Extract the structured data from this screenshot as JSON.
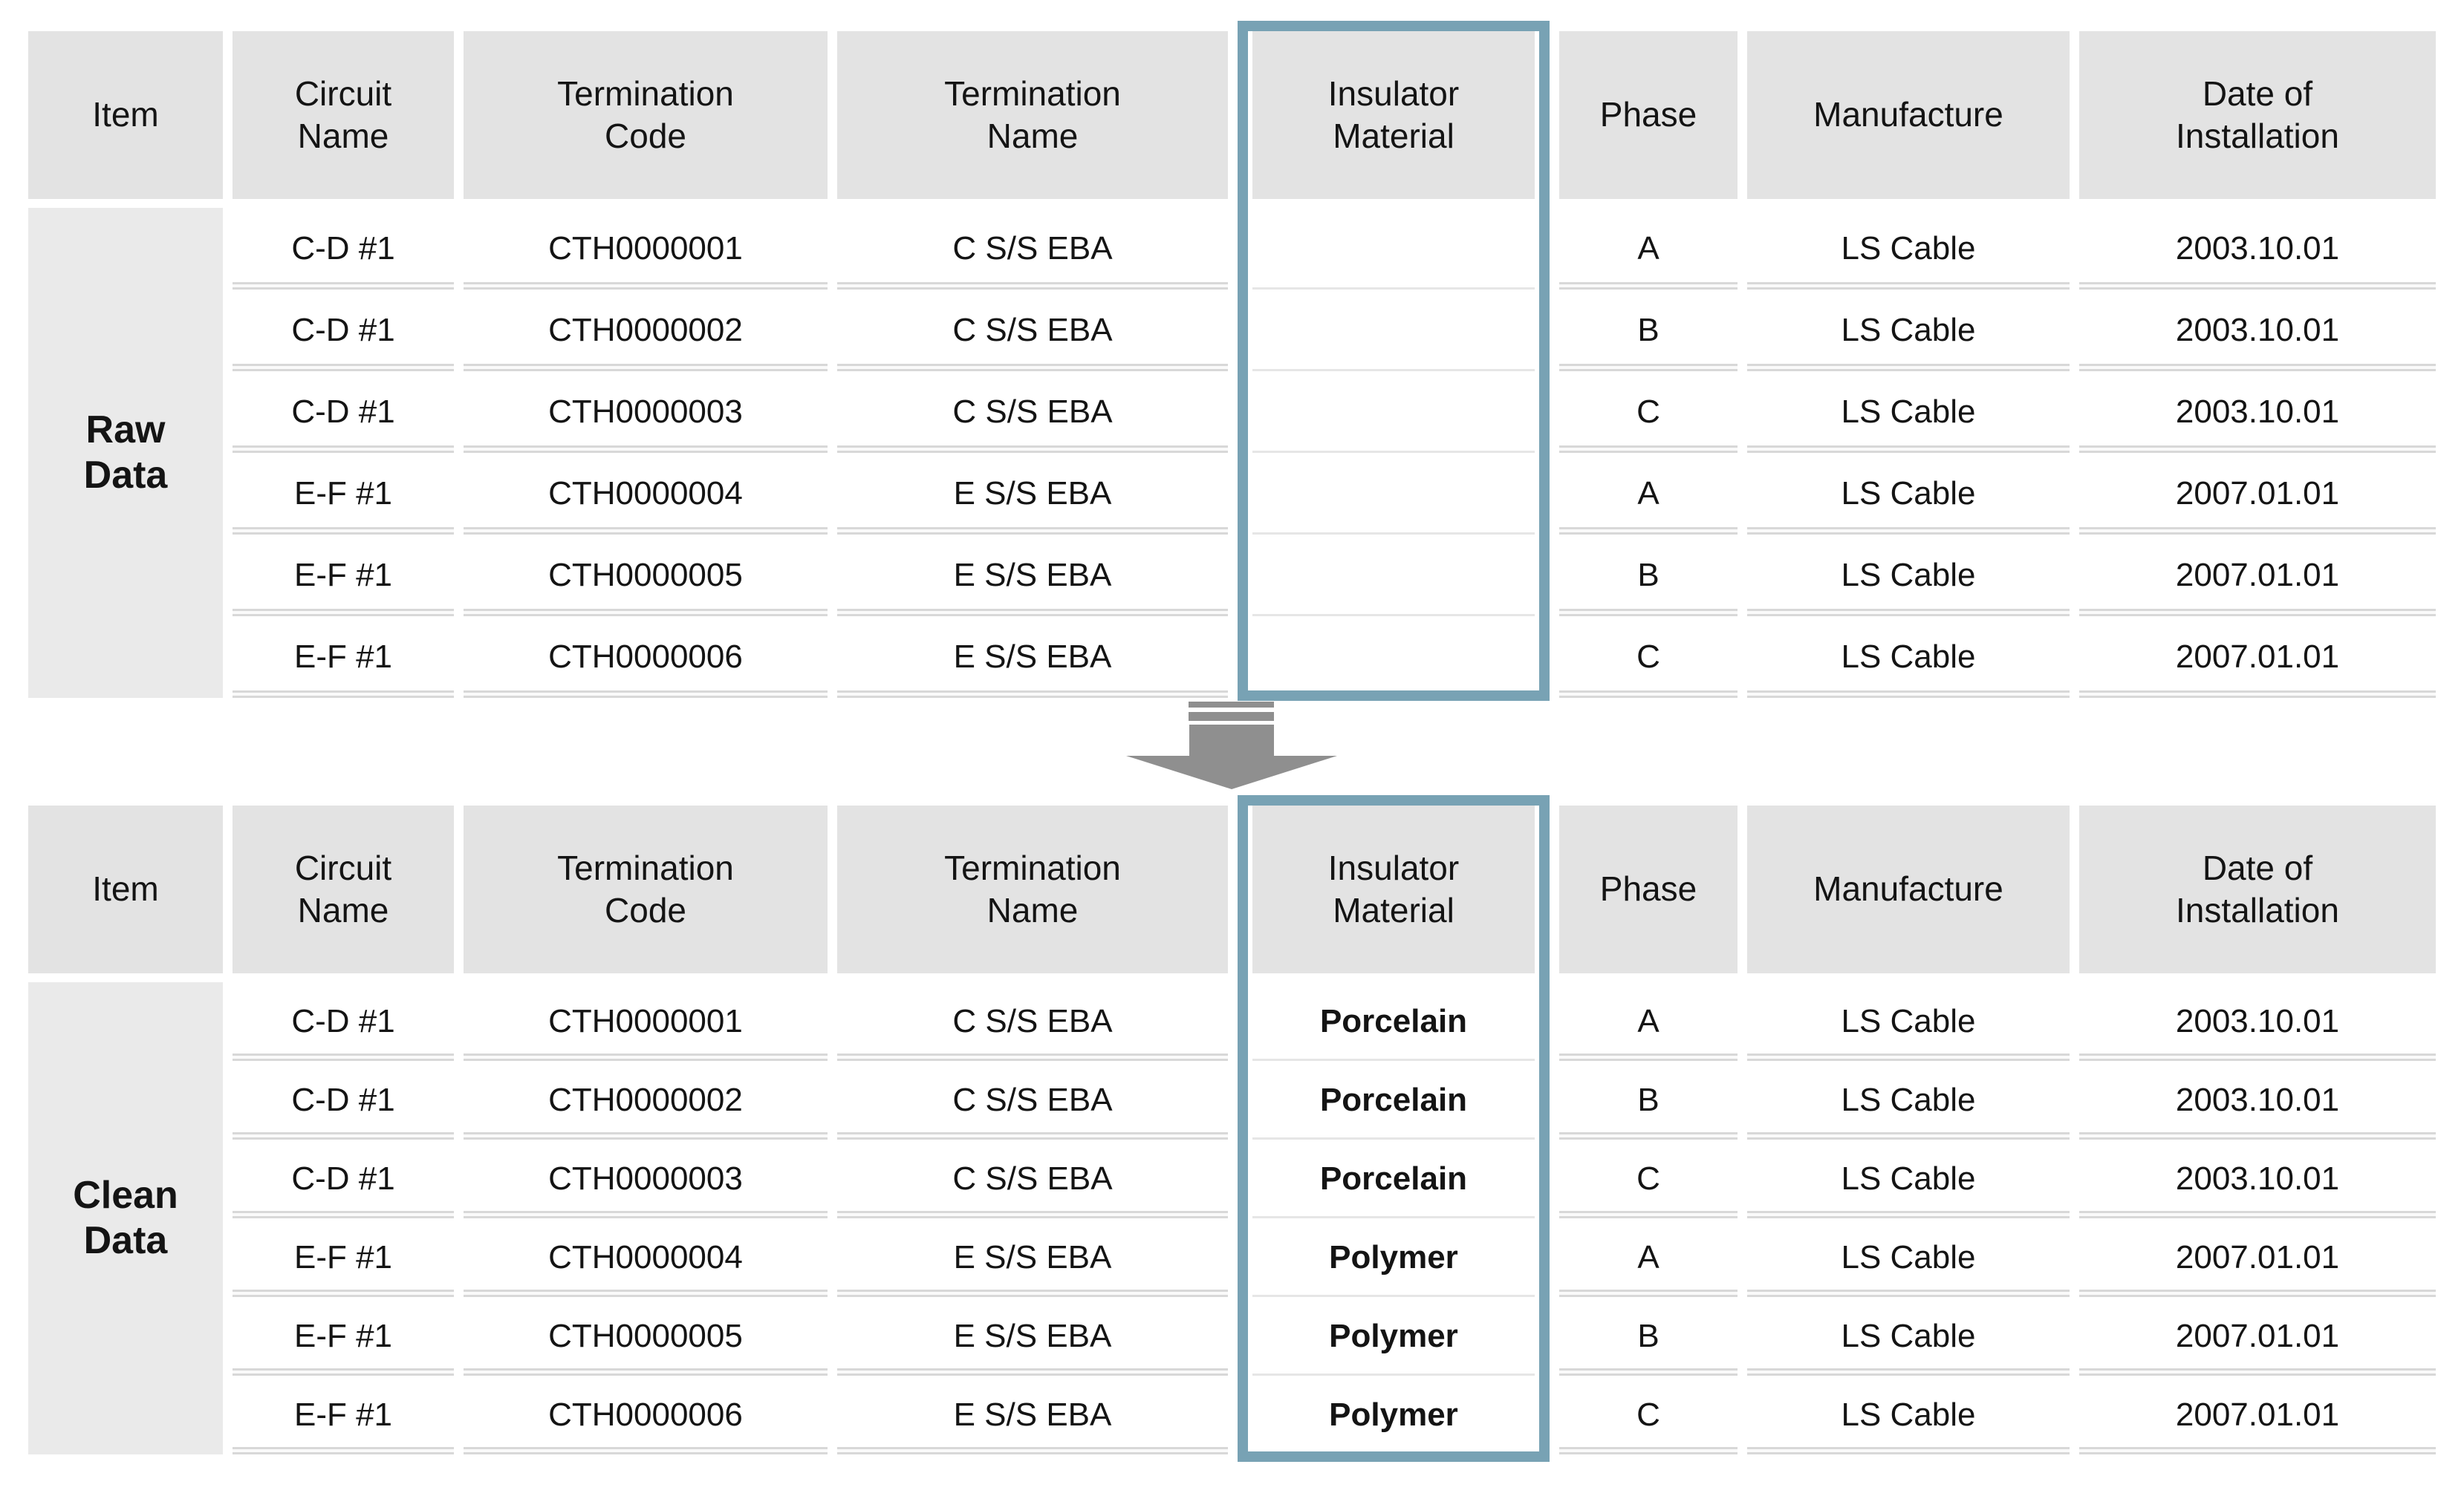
{
  "figure": {
    "headers": [
      "Item",
      "Circuit\nName",
      "Termination\nCode",
      "Termination\nName",
      "Insulator\nMaterial",
      "Phase",
      "Manufacture",
      "Date of\nInstallation"
    ],
    "raw": {
      "item_label": "Raw\nData",
      "rows": [
        {
          "circuit": "C-D #1",
          "code": "CTH0000001",
          "name": "C S/S EBA",
          "insulator": "",
          "phase": "A",
          "manufacture": "LS Cable",
          "date": "2003.10.01"
        },
        {
          "circuit": "C-D #1",
          "code": "CTH0000002",
          "name": "C S/S EBA",
          "insulator": "",
          "phase": "B",
          "manufacture": "LS Cable",
          "date": "2003.10.01"
        },
        {
          "circuit": "C-D #1",
          "code": "CTH0000003",
          "name": "C S/S EBA",
          "insulator": "",
          "phase": "C",
          "manufacture": "LS Cable",
          "date": "2003.10.01"
        },
        {
          "circuit": "E-F #1",
          "code": "CTH0000004",
          "name": "E S/S EBA",
          "insulator": "",
          "phase": "A",
          "manufacture": "LS Cable",
          "date": "2007.01.01"
        },
        {
          "circuit": "E-F #1",
          "code": "CTH0000005",
          "name": "E S/S EBA",
          "insulator": "",
          "phase": "B",
          "manufacture": "LS Cable",
          "date": "2007.01.01"
        },
        {
          "circuit": "E-F #1",
          "code": "CTH0000006",
          "name": "E S/S EBA",
          "insulator": "",
          "phase": "C",
          "manufacture": "LS Cable",
          "date": "2007.01.01"
        }
      ]
    },
    "clean": {
      "item_label": "Clean\nData",
      "rows": [
        {
          "circuit": "C-D #1",
          "code": "CTH0000001",
          "name": "C S/S EBA",
          "insulator": "Porcelain",
          "phase": "A",
          "manufacture": "LS Cable",
          "date": "2003.10.01"
        },
        {
          "circuit": "C-D #1",
          "code": "CTH0000002",
          "name": "C S/S EBA",
          "insulator": "Porcelain",
          "phase": "B",
          "manufacture": "LS Cable",
          "date": "2003.10.01"
        },
        {
          "circuit": "C-D #1",
          "code": "CTH0000003",
          "name": "C S/S EBA",
          "insulator": "Porcelain",
          "phase": "C",
          "manufacture": "LS Cable",
          "date": "2003.10.01"
        },
        {
          "circuit": "E-F #1",
          "code": "CTH0000004",
          "name": "E S/S EBA",
          "insulator": "Polymer",
          "phase": "A",
          "manufacture": "LS Cable",
          "date": "2007.01.01"
        },
        {
          "circuit": "E-F #1",
          "code": "CTH0000005",
          "name": "E S/S EBA",
          "insulator": "Polymer",
          "phase": "B",
          "manufacture": "LS Cable",
          "date": "2007.01.01"
        },
        {
          "circuit": "E-F #1",
          "code": "CTH0000006",
          "name": "E S/S EBA",
          "insulator": "Polymer",
          "phase": "C",
          "manufacture": "LS Cable",
          "date": "2007.01.01"
        }
      ]
    },
    "colors": {
      "highlight_border": "#78A2B4",
      "arrow": "#8F8F8F",
      "header_bg": "#E3E3E3",
      "row_group_bg": "#EAEAEA",
      "separator": "#D8D8D8",
      "row_bg": "#FFFFFF",
      "text": "#141414"
    }
  }
}
